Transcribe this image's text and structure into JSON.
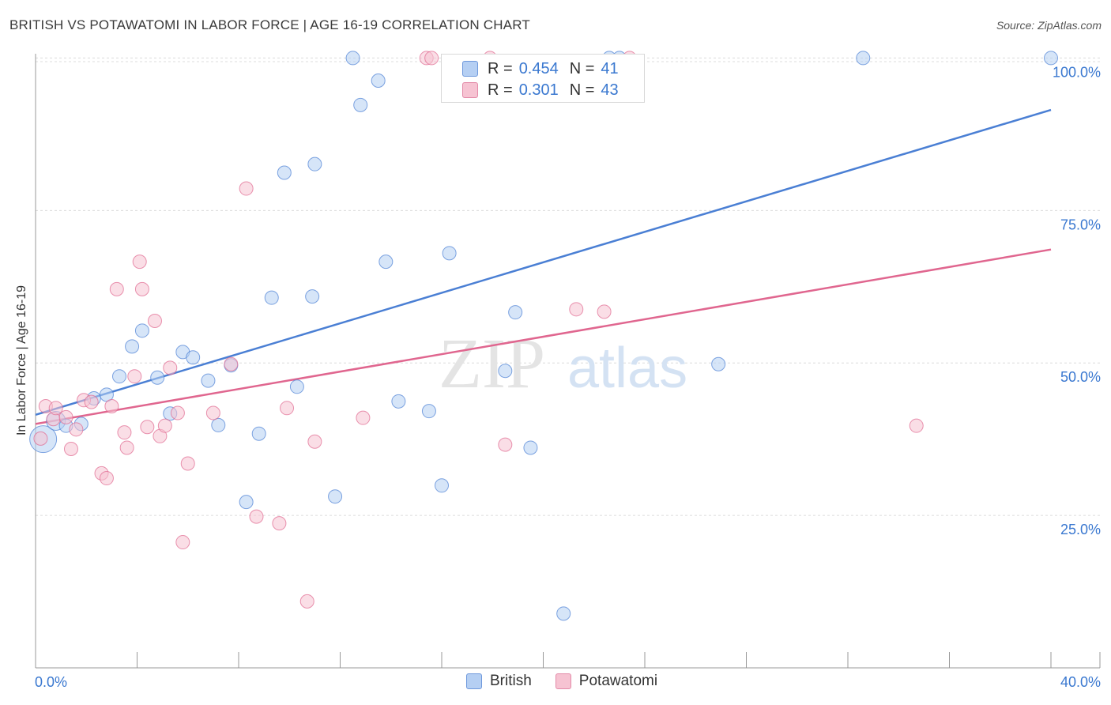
{
  "chart_data": {
    "type": "scatter",
    "title": "BRITISH VS POTAWATOMI IN LABOR FORCE | AGE 16-19 CORRELATION CHART",
    "source": "Source: ZipAtlas.com",
    "xlabel": "",
    "ylabel": "In Labor Force | Age 16-19",
    "xlim": [
      0,
      40
    ],
    "ylim": [
      0,
      102
    ],
    "x_tick_labels": [
      "0.0%",
      "40.0%"
    ],
    "y_tick_values": [
      25,
      50,
      75,
      100
    ],
    "y_tick_labels": [
      "25.0%",
      "50.0%",
      "75.0%",
      "100.0%"
    ],
    "watermark": "ZIPatlas",
    "legend": {
      "r_label": "R =",
      "n_label": "N =",
      "rows": [
        {
          "series": "British",
          "r": "0.454",
          "n": "41"
        },
        {
          "series": "Potawatomi",
          "r": "0.301",
          "n": "43"
        }
      ]
    },
    "series": [
      {
        "name": "British",
        "color": "#4a7fd4",
        "fill": "#b5cff3",
        "trend": {
          "x": [
            0,
            40
          ],
          "y": [
            41.5,
            91.5
          ]
        },
        "points": [
          {
            "x": 0.3,
            "y": 37.5,
            "size": "large"
          },
          {
            "x": 0.8,
            "y": 40.5,
            "size": "medium"
          },
          {
            "x": 1.2,
            "y": 39.7
          },
          {
            "x": 1.8,
            "y": 40.0
          },
          {
            "x": 2.3,
            "y": 44.2
          },
          {
            "x": 2.8,
            "y": 44.8
          },
          {
            "x": 3.3,
            "y": 47.8
          },
          {
            "x": 3.8,
            "y": 52.7
          },
          {
            "x": 4.2,
            "y": 55.3
          },
          {
            "x": 4.8,
            "y": 47.6
          },
          {
            "x": 5.3,
            "y": 41.7
          },
          {
            "x": 5.8,
            "y": 51.8
          },
          {
            "x": 6.2,
            "y": 50.9
          },
          {
            "x": 6.8,
            "y": 47.1
          },
          {
            "x": 7.2,
            "y": 39.8
          },
          {
            "x": 7.7,
            "y": 49.6
          },
          {
            "x": 8.3,
            "y": 27.2
          },
          {
            "x": 8.8,
            "y": 38.4
          },
          {
            "x": 9.3,
            "y": 60.7
          },
          {
            "x": 9.8,
            "y": 81.2
          },
          {
            "x": 10.3,
            "y": 46.1
          },
          {
            "x": 10.9,
            "y": 60.9
          },
          {
            "x": 11.0,
            "y": 82.6
          },
          {
            "x": 11.8,
            "y": 28.1
          },
          {
            "x": 12.5,
            "y": 100.0
          },
          {
            "x": 12.8,
            "y": 92.3
          },
          {
            "x": 13.5,
            "y": 96.3
          },
          {
            "x": 13.8,
            "y": 66.6
          },
          {
            "x": 14.3,
            "y": 43.7
          },
          {
            "x": 15.5,
            "y": 42.1
          },
          {
            "x": 16.0,
            "y": 29.9
          },
          {
            "x": 16.3,
            "y": 68.0
          },
          {
            "x": 18.5,
            "y": 48.7
          },
          {
            "x": 18.9,
            "y": 58.3
          },
          {
            "x": 19.5,
            "y": 36.1
          },
          {
            "x": 20.8,
            "y": 8.9
          },
          {
            "x": 22.6,
            "y": 100.0
          },
          {
            "x": 23.0,
            "y": 100.0
          },
          {
            "x": 26.9,
            "y": 49.8
          },
          {
            "x": 32.6,
            "y": 100.0
          },
          {
            "x": 40.0,
            "y": 100.0
          }
        ]
      },
      {
        "name": "Potawatomi",
        "color": "#e0668f",
        "fill": "#f6c3d2",
        "trend": {
          "x": [
            0,
            40
          ],
          "y": [
            40.0,
            68.6
          ]
        },
        "points": [
          {
            "x": 0.2,
            "y": 37.6
          },
          {
            "x": 0.4,
            "y": 42.9
          },
          {
            "x": 0.7,
            "y": 40.8
          },
          {
            "x": 0.8,
            "y": 42.6
          },
          {
            "x": 1.2,
            "y": 41.1
          },
          {
            "x": 1.4,
            "y": 35.9
          },
          {
            "x": 1.6,
            "y": 39.1
          },
          {
            "x": 1.9,
            "y": 43.9
          },
          {
            "x": 2.2,
            "y": 43.6
          },
          {
            "x": 2.6,
            "y": 31.9
          },
          {
            "x": 2.8,
            "y": 31.1
          },
          {
            "x": 3.0,
            "y": 42.9
          },
          {
            "x": 3.2,
            "y": 62.1
          },
          {
            "x": 3.5,
            "y": 38.6
          },
          {
            "x": 3.6,
            "y": 36.1
          },
          {
            "x": 3.9,
            "y": 47.8
          },
          {
            "x": 4.1,
            "y": 66.6
          },
          {
            "x": 4.2,
            "y": 62.1
          },
          {
            "x": 4.4,
            "y": 39.5
          },
          {
            "x": 4.7,
            "y": 56.9
          },
          {
            "x": 4.9,
            "y": 38.0
          },
          {
            "x": 5.1,
            "y": 39.7
          },
          {
            "x": 5.3,
            "y": 49.2
          },
          {
            "x": 5.6,
            "y": 41.8
          },
          {
            "x": 5.8,
            "y": 20.6
          },
          {
            "x": 6.0,
            "y": 33.5
          },
          {
            "x": 7.0,
            "y": 41.8
          },
          {
            "x": 7.7,
            "y": 49.8
          },
          {
            "x": 8.3,
            "y": 78.6
          },
          {
            "x": 8.7,
            "y": 24.8
          },
          {
            "x": 9.6,
            "y": 23.7
          },
          {
            "x": 9.9,
            "y": 42.6
          },
          {
            "x": 10.7,
            "y": 10.9
          },
          {
            "x": 11.0,
            "y": 37.1
          },
          {
            "x": 12.9,
            "y": 41.0
          },
          {
            "x": 15.4,
            "y": 100.0
          },
          {
            "x": 15.6,
            "y": 100.0
          },
          {
            "x": 17.9,
            "y": 100.0
          },
          {
            "x": 18.5,
            "y": 36.6
          },
          {
            "x": 21.3,
            "y": 58.8
          },
          {
            "x": 22.4,
            "y": 58.4
          },
          {
            "x": 23.4,
            "y": 100.0
          },
          {
            "x": 34.7,
            "y": 39.7
          }
        ]
      }
    ]
  }
}
